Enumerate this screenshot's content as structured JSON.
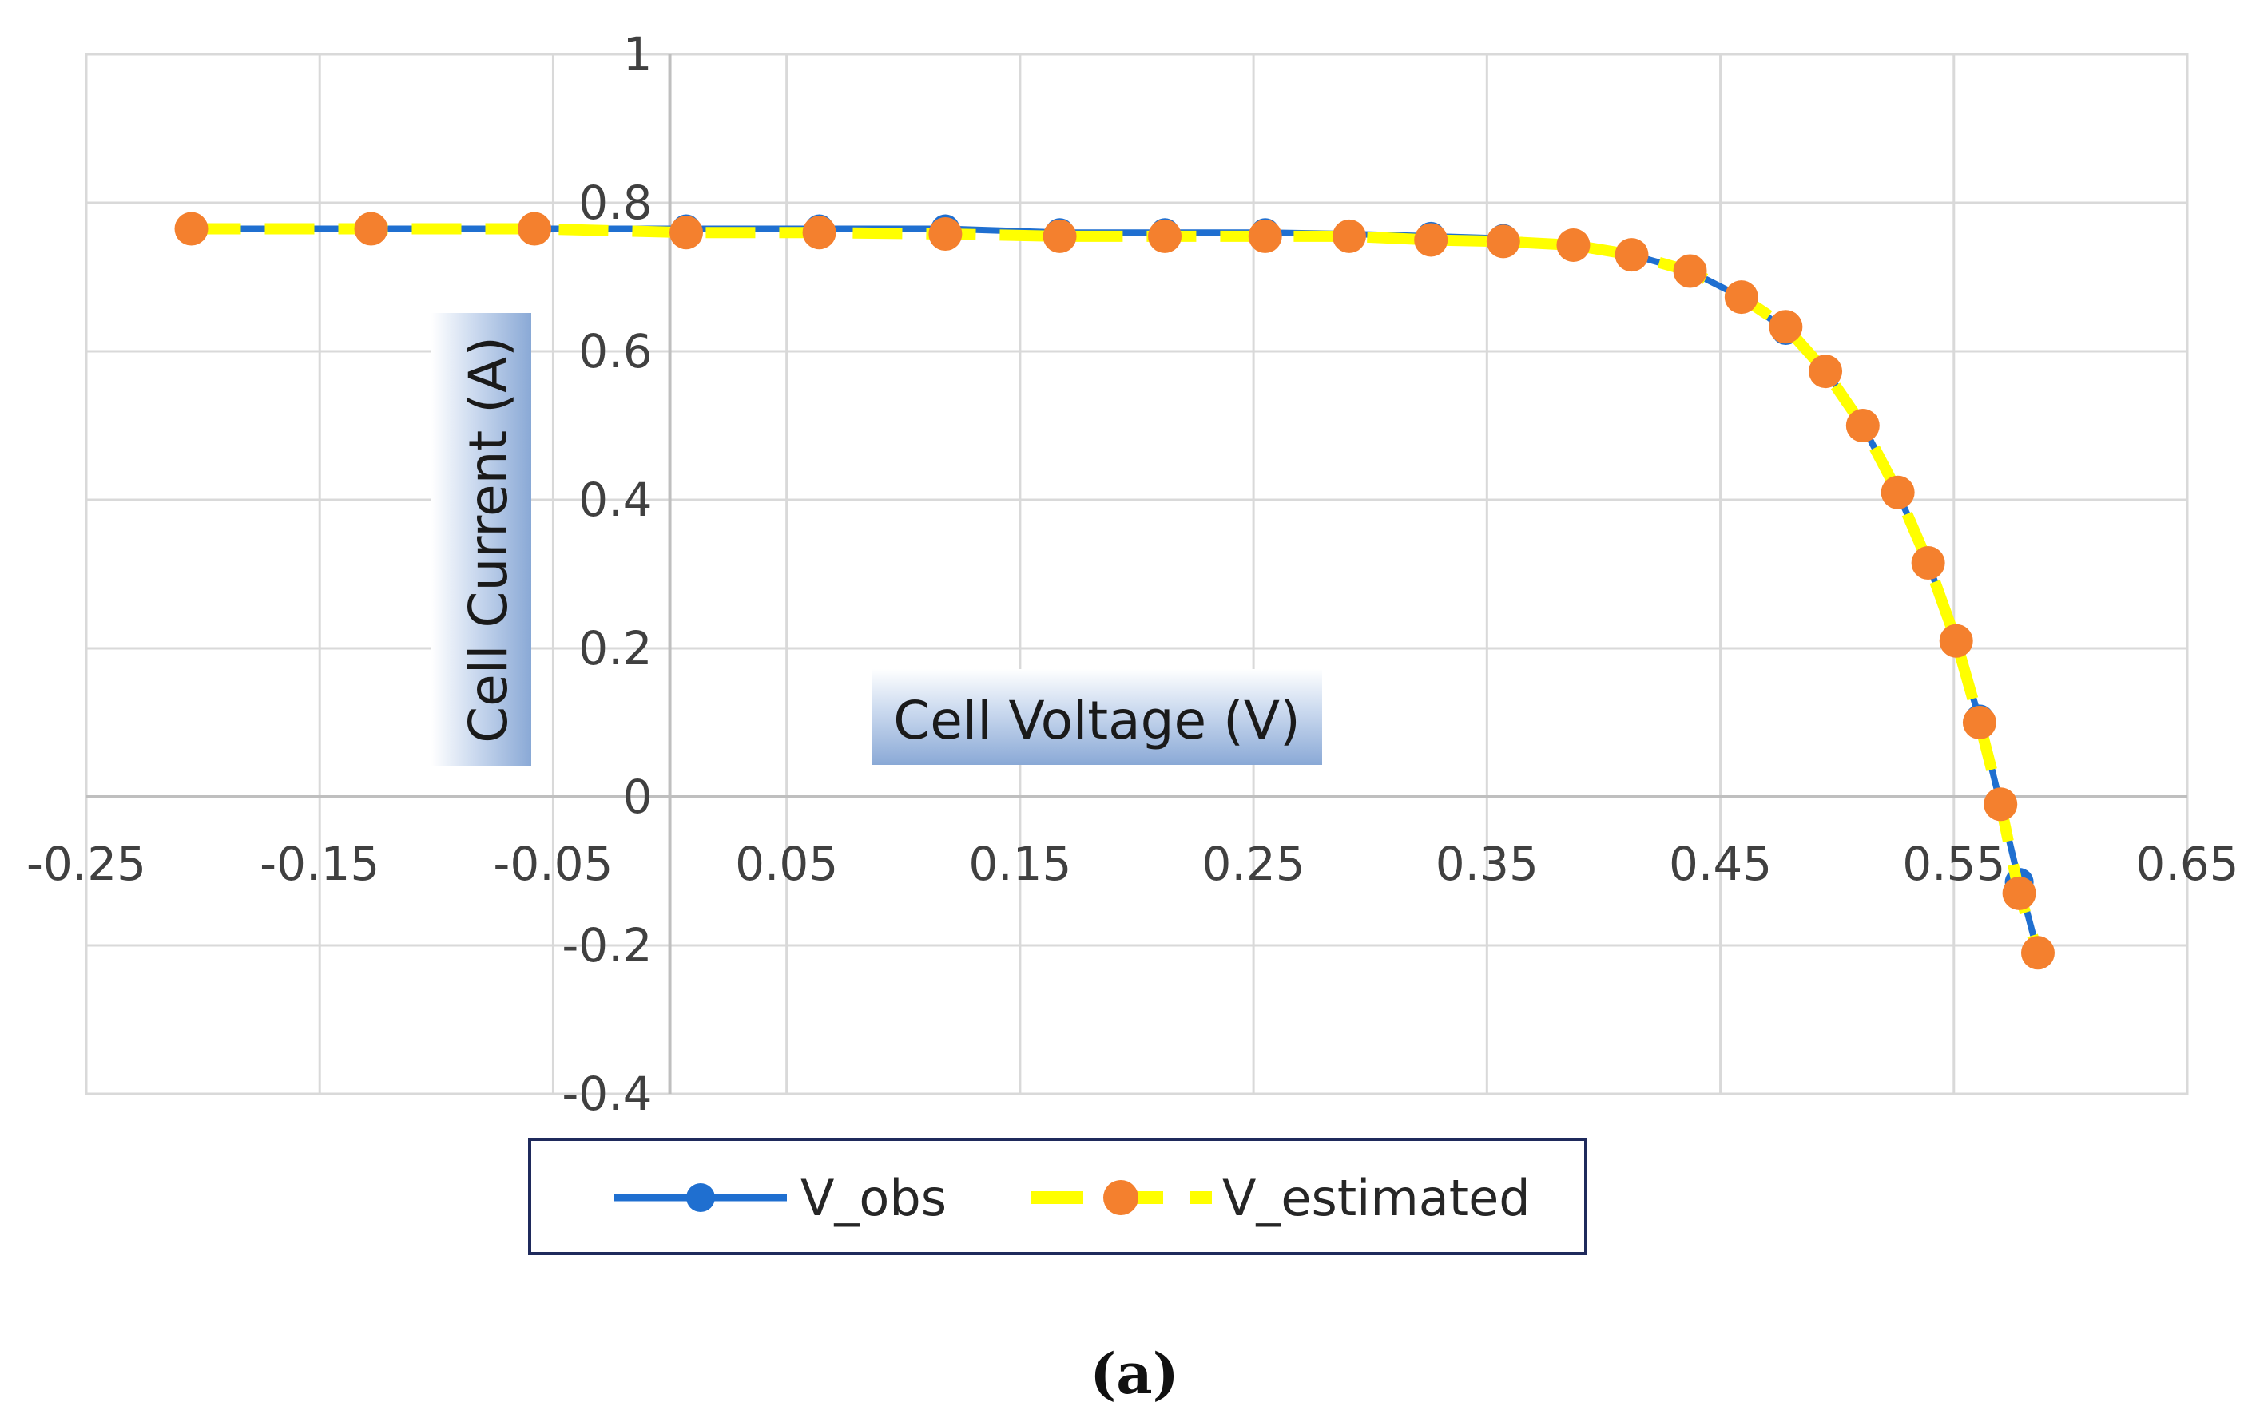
{
  "chart_data": {
    "type": "line",
    "title": "",
    "xlabel": "Cell Voltage (V)",
    "ylabel": "Cell Current (A)",
    "xlim": [
      -0.25,
      0.65
    ],
    "ylim": [
      -0.4,
      1.0
    ],
    "x_ticks": [
      "-0.25",
      "-0.15",
      "-0.05",
      "0.05",
      "0.15",
      "0.25",
      "0.35",
      "0.45",
      "0.55",
      "0.65"
    ],
    "y_ticks": [
      "-0.4",
      "-0.2",
      "0",
      "0.2",
      "0.4",
      "0.6",
      "0.8",
      "1"
    ],
    "x_tick_values": [
      -0.25,
      -0.15,
      -0.05,
      0.05,
      0.15,
      0.25,
      0.35,
      0.45,
      0.55,
      0.65
    ],
    "y_tick_values": [
      -0.4,
      -0.2,
      0,
      0.2,
      0.4,
      0.6,
      0.8,
      1.0
    ],
    "legend": {
      "position": "bottom"
    },
    "caption": "(a)",
    "series": [
      {
        "name": "V_obs",
        "color": "#1f6fd0",
        "style": "solid-line-with-markers",
        "x": [
          -0.205,
          -0.128,
          -0.058,
          0.007,
          0.064,
          0.118,
          0.167,
          0.212,
          0.255,
          0.291,
          0.326,
          0.357,
          0.387,
          0.412,
          0.437,
          0.459,
          0.478,
          0.495,
          0.511,
          0.526,
          0.539,
          0.551,
          0.561,
          0.57,
          0.578,
          0.586
        ],
        "y": [
          0.765,
          0.765,
          0.765,
          0.765,
          0.765,
          0.765,
          0.76,
          0.76,
          0.76,
          0.758,
          0.755,
          0.752,
          0.743,
          0.73,
          0.708,
          0.673,
          0.628,
          0.575,
          0.5,
          0.41,
          0.315,
          0.21,
          0.105,
          -0.01,
          -0.115,
          -0.21
        ]
      },
      {
        "name": "V_estimated",
        "color": "#ffff00",
        "marker_color": "#f4802e",
        "style": "dashed-line-with-markers",
        "x": [
          -0.205,
          -0.128,
          -0.058,
          0.007,
          0.064,
          0.118,
          0.167,
          0.212,
          0.255,
          0.291,
          0.326,
          0.357,
          0.387,
          0.412,
          0.437,
          0.459,
          0.478,
          0.495,
          0.511,
          0.526,
          0.539,
          0.551,
          0.561,
          0.57,
          0.578,
          0.586
        ],
        "y": [
          0.765,
          0.765,
          0.765,
          0.76,
          0.76,
          0.758,
          0.755,
          0.755,
          0.755,
          0.755,
          0.75,
          0.748,
          0.743,
          0.73,
          0.708,
          0.673,
          0.633,
          0.573,
          0.5,
          0.41,
          0.315,
          0.21,
          0.1,
          -0.01,
          -0.13,
          -0.21
        ]
      }
    ]
  }
}
